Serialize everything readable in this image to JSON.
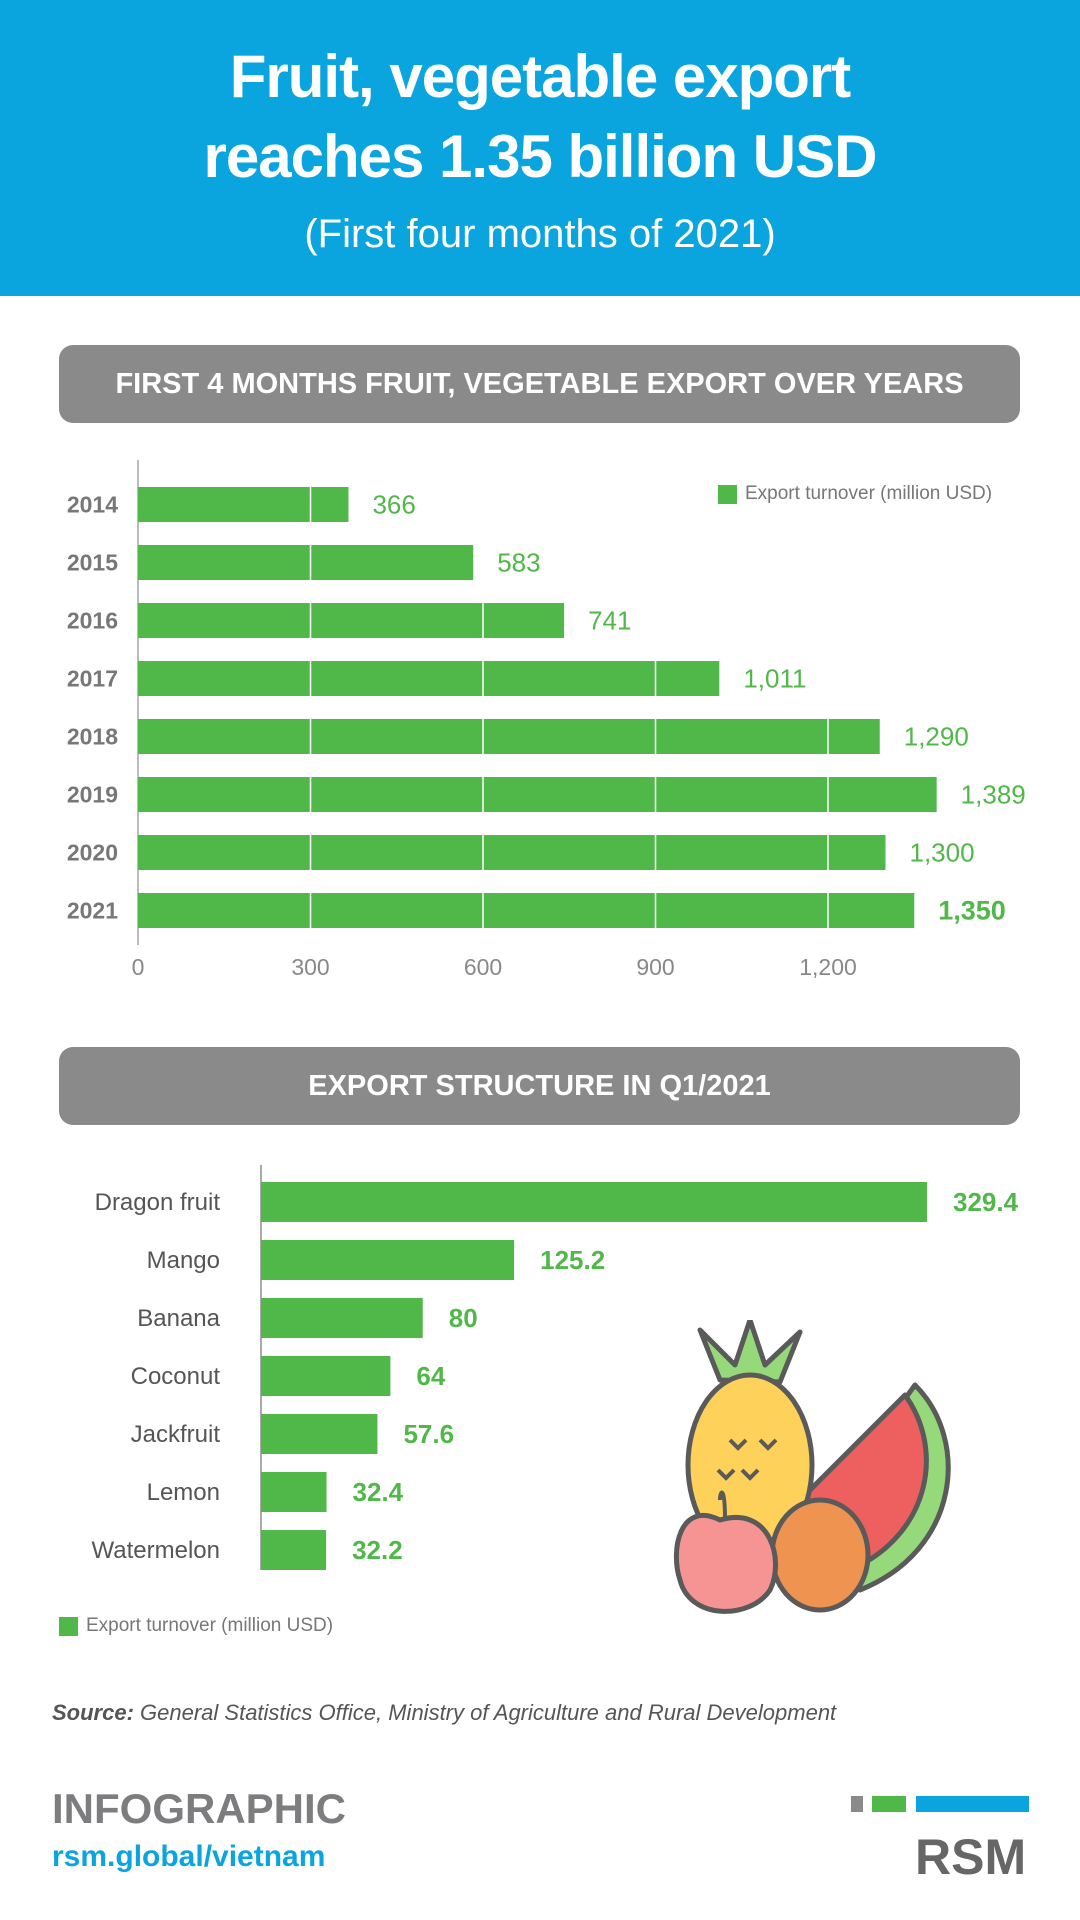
{
  "header": {
    "title_line1": "Fruit, vegetable export",
    "title_line2": "reaches 1.35 billion USD",
    "subtitle": "(First four months of 2021)"
  },
  "section1": {
    "title": "FIRST 4 MONTHS FRUIT, VEGETABLE EXPORT OVER YEARS"
  },
  "section2": {
    "title": "EXPORT STRUCTURE IN Q1/2021"
  },
  "chart_data": [
    {
      "type": "bar",
      "orientation": "horizontal",
      "title": "FIRST 4 MONTHS FRUIT, VEGETABLE EXPORT OVER YEARS",
      "categories": [
        "2014",
        "2015",
        "2016",
        "2017",
        "2018",
        "2019",
        "2020",
        "2021"
      ],
      "values": [
        366,
        583,
        741,
        1011,
        1290,
        1389,
        1300,
        1350
      ],
      "value_labels": [
        "366",
        "583",
        "741",
        "1,011",
        "1,290",
        "1,389",
        "1,300",
        "1,350"
      ],
      "xticks": [
        0,
        300,
        600,
        900,
        1200
      ],
      "xtick_labels": [
        "0",
        "300",
        "600",
        "900",
        "1,200"
      ],
      "xlim": [
        0,
        1400
      ],
      "legend": "Export turnover (million USD)",
      "legend_position": "top-right",
      "color": "#50b848",
      "highlight": "2021"
    },
    {
      "type": "bar",
      "orientation": "horizontal",
      "title": "EXPORT STRUCTURE IN Q1/2021",
      "categories": [
        "Dragon fruit",
        "Mango",
        "Banana",
        "Coconut",
        "Jackfruit",
        "Lemon",
        "Watermelon"
      ],
      "values": [
        329.4,
        125.2,
        80,
        64,
        57.6,
        32.4,
        32.2
      ],
      "value_labels": [
        "329.4",
        "125.2",
        "80",
        "64",
        "57.6",
        "32.4",
        "32.2"
      ],
      "legend": "Export turnover (million USD)",
      "legend_position": "bottom-left",
      "color": "#50b848"
    }
  ],
  "footer": {
    "source_label": "Source:",
    "source_text": " General Statistics Office, Ministry of Agriculture and Rural Development",
    "infographic": "INFOGRAPHIC",
    "url": "rsm.global/vietnam",
    "logo": "RSM"
  },
  "colors": {
    "blue": "#0aa5df",
    "green": "#50b848",
    "gray": "#8a8a8a"
  }
}
